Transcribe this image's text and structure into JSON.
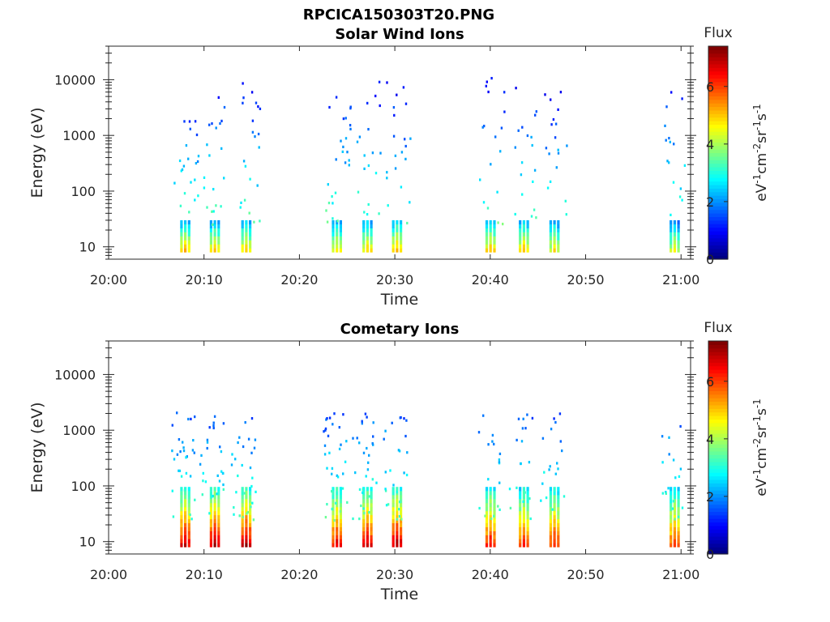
{
  "figure_title": "RPCICA150303T20.PNG",
  "chart_data": [
    {
      "type": "heatmap",
      "title": "Solar Wind Ions",
      "xlabel": "Time",
      "ylabel": "Energy (eV)",
      "x_ticks": [
        "20:00",
        "20:10",
        "20:20",
        "20:30",
        "20:40",
        "20:50",
        "21:00"
      ],
      "x_range_minutes": [
        0,
        61
      ],
      "y_scale": "log",
      "y_range": [
        6,
        40000
      ],
      "y_ticks": [
        "10",
        "100",
        "1000",
        "10000"
      ],
      "colorbar": {
        "title": "Flux",
        "label": "eV-1cm-2sr-1s-1",
        "ticks": [
          "0",
          "2",
          "4",
          "6"
        ],
        "range": [
          0,
          7.4
        ],
        "colormap": "jet"
      },
      "bursts": [
        {
          "t": 8.1,
          "low": 5.2,
          "pts": 22
        },
        {
          "t": 11.2,
          "low": 5.0,
          "pts": 20
        },
        {
          "t": 14.5,
          "low": 5.1,
          "pts": 22
        },
        {
          "t": 24.0,
          "low": 4.9,
          "pts": 26
        },
        {
          "t": 27.2,
          "low": 5.1,
          "pts": 18
        },
        {
          "t": 30.3,
          "low": 5.4,
          "pts": 20
        },
        {
          "t": 40.1,
          "low": 5.2,
          "pts": 18
        },
        {
          "t": 43.6,
          "low": 5.1,
          "pts": 18
        },
        {
          "t": 46.8,
          "low": 4.8,
          "pts": 18
        },
        {
          "t": 59.4,
          "low": 4.6,
          "pts": 16
        }
      ]
    },
    {
      "type": "heatmap",
      "title": "Cometary Ions",
      "xlabel": "Time",
      "ylabel": "Energy (eV)",
      "x_ticks": [
        "20:00",
        "20:10",
        "20:20",
        "20:30",
        "20:40",
        "20:50",
        "21:00"
      ],
      "x_range_minutes": [
        0,
        61
      ],
      "y_scale": "log",
      "y_range": [
        6,
        40000
      ],
      "y_ticks": [
        "10",
        "100",
        "1000",
        "10000"
      ],
      "colorbar": {
        "title": "Flux",
        "label": "eV-1cm-2sr-1s-1",
        "ticks": [
          "0",
          "2",
          "4",
          "6"
        ],
        "range": [
          0,
          7.4
        ],
        "colormap": "jet"
      },
      "bursts": [
        {
          "t": 8.1,
          "low": 7.0,
          "pts": 30
        },
        {
          "t": 11.2,
          "low": 7.2,
          "pts": 28
        },
        {
          "t": 14.5,
          "low": 7.2,
          "pts": 30
        },
        {
          "t": 24.0,
          "low": 6.8,
          "pts": 34
        },
        {
          "t": 27.2,
          "low": 6.9,
          "pts": 30
        },
        {
          "t": 30.3,
          "low": 7.2,
          "pts": 26
        },
        {
          "t": 40.1,
          "low": 6.6,
          "pts": 18
        },
        {
          "t": 43.6,
          "low": 6.4,
          "pts": 18
        },
        {
          "t": 46.8,
          "low": 6.4,
          "pts": 18
        },
        {
          "t": 59.4,
          "low": 6.2,
          "pts": 18
        }
      ]
    }
  ]
}
